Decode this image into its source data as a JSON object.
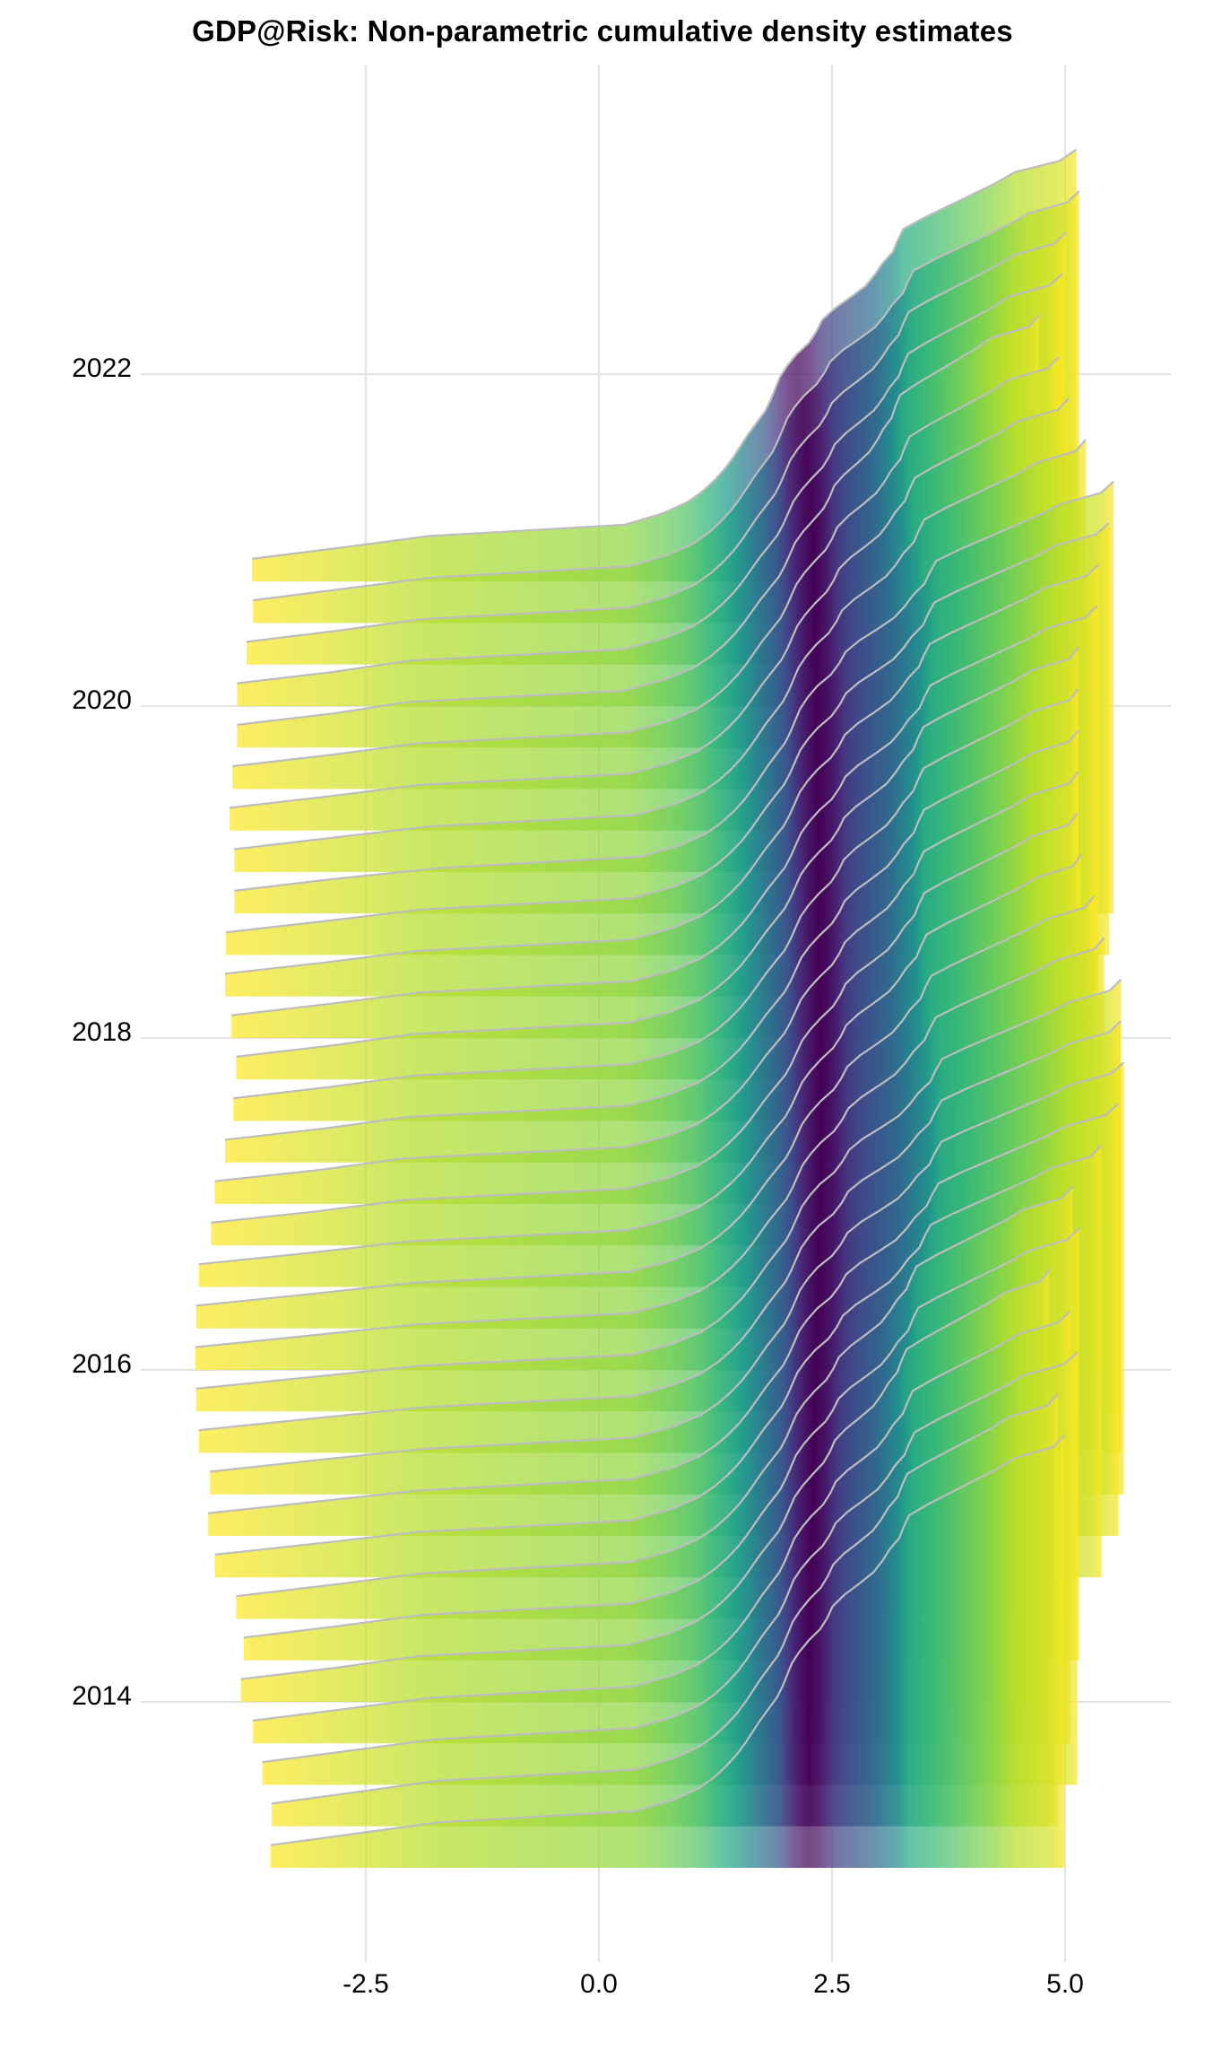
{
  "title": "GDP@Risk: Non-parametric cumulative density estimates",
  "chart_data": {
    "type": "area",
    "subtype": "ridgeline cumulative density (quantile CDF) per quarter",
    "title": "GDP@Risk: Non-parametric cumulative density estimates",
    "xlabel": "",
    "ylabel": "",
    "x_ticks": [
      "-2.5",
      "0.0",
      "2.5",
      "5.0"
    ],
    "x_tick_values": [
      -2.5,
      0.0,
      2.5,
      5.0
    ],
    "y_ticks": [
      "2014",
      "2016",
      "2018",
      "2020",
      "2022"
    ],
    "y_tick_values": [
      2014,
      2016,
      2018,
      2020,
      2022
    ],
    "xlim": [
      -4.6,
      6.0
    ],
    "ylim": [
      2012.9,
      2023.3
    ],
    "grid": true,
    "legend": "none",
    "fill_scale": "viridis by distance of cumulative probability from median (purple = median, yellow = tails)",
    "outline_color": "#bdbdbd",
    "quantile_levels": [
      0.05,
      0.95
    ],
    "series": [
      {
        "period": 2020.75,
        "q05": -3.72,
        "q075": -2.75,
        "q10": -1.82,
        "median": 2.12,
        "q90": 4.46,
        "q95": 5.12
      },
      {
        "period": 2020.5,
        "q05": -3.71,
        "q075": -2.75,
        "q10": -1.8,
        "median": 2.2,
        "q90": 4.6,
        "q95": 5.15
      },
      {
        "period": 2020.25,
        "q05": -3.78,
        "q075": -2.78,
        "q10": -1.88,
        "median": 2.24,
        "q90": 4.45,
        "q95": 5.01
      },
      {
        "period": 2020.0,
        "q05": -3.88,
        "q075": -2.85,
        "q10": -2.02,
        "median": 2.28,
        "q90": 4.4,
        "q95": 4.97
      },
      {
        "period": 2019.75,
        "q05": -3.88,
        "q075": -2.84,
        "q10": -2.05,
        "median": 2.3,
        "q90": 4.2,
        "q95": 4.72
      },
      {
        "period": 2019.5,
        "q05": -3.93,
        "q075": -2.88,
        "q10": -1.96,
        "median": 2.31,
        "q90": 4.4,
        "q95": 4.93
      },
      {
        "period": 2019.25,
        "q05": -3.96,
        "q075": -2.9,
        "q10": -1.93,
        "median": 2.32,
        "q90": 4.5,
        "q95": 5.04
      },
      {
        "period": 2019.0,
        "q05": -3.91,
        "q075": -2.88,
        "q10": -1.82,
        "median": 2.33,
        "q90": 4.7,
        "q95": 5.22
      },
      {
        "period": 2018.75,
        "q05": -3.91,
        "q075": -2.88,
        "q10": -1.7,
        "median": 2.34,
        "q90": 4.95,
        "q95": 5.52
      },
      {
        "period": 2018.5,
        "q05": -4.0,
        "q075": -2.92,
        "q10": -1.9,
        "median": 2.35,
        "q90": 4.9,
        "q95": 5.47
      },
      {
        "period": 2018.25,
        "q05": -4.01,
        "q075": -2.93,
        "q10": -1.95,
        "median": 2.35,
        "q90": 4.8,
        "q95": 5.36
      },
      {
        "period": 2018.0,
        "q05": -3.94,
        "q075": -2.89,
        "q10": -1.92,
        "median": 2.36,
        "q90": 4.8,
        "q95": 5.34
      },
      {
        "period": 2017.75,
        "q05": -3.89,
        "q075": -2.85,
        "q10": -1.98,
        "median": 2.36,
        "q90": 4.65,
        "q95": 5.14
      },
      {
        "period": 2017.5,
        "q05": -3.92,
        "q075": -2.88,
        "q10": -1.97,
        "median": 2.36,
        "q90": 4.65,
        "q95": 5.14
      },
      {
        "period": 2017.25,
        "q05": -4.01,
        "q075": -2.93,
        "q10": -2.05,
        "median": 2.37,
        "q90": 4.65,
        "q95": 5.14
      },
      {
        "period": 2017.0,
        "q05": -4.12,
        "q075": -2.99,
        "q10": -2.1,
        "median": 2.37,
        "q90": 4.65,
        "q95": 5.14
      },
      {
        "period": 2016.75,
        "q05": -4.16,
        "q075": -3.02,
        "q10": -2.08,
        "median": 2.38,
        "q90": 4.65,
        "q95": 5.13
      },
      {
        "period": 2016.5,
        "q05": -4.29,
        "q075": -3.1,
        "q10": -2.05,
        "median": 2.38,
        "q90": 4.7,
        "q95": 5.17
      },
      {
        "period": 2016.25,
        "q05": -4.32,
        "q075": -3.12,
        "q10": -2.0,
        "median": 2.38,
        "q90": 4.8,
        "q95": 5.31
      },
      {
        "period": 2016.0,
        "q05": -4.33,
        "q075": -3.13,
        "q10": -1.96,
        "median": 2.38,
        "q90": 4.9,
        "q95": 5.42
      },
      {
        "period": 2015.75,
        "q05": -4.32,
        "q075": -3.11,
        "q10": -1.92,
        "median": 2.37,
        "q90": 5.05,
        "q95": 5.6
      },
      {
        "period": 2015.5,
        "q05": -4.29,
        "q075": -3.1,
        "q10": -1.9,
        "median": 2.36,
        "q90": 5.05,
        "q95": 5.6
      },
      {
        "period": 2015.25,
        "q05": -4.17,
        "q075": -3.04,
        "q10": -1.88,
        "median": 2.35,
        "q90": 5.05,
        "q95": 5.63
      },
      {
        "period": 2015.0,
        "q05": -4.19,
        "q075": -3.05,
        "q10": -1.92,
        "median": 2.34,
        "q90": 5.0,
        "q95": 5.57
      },
      {
        "period": 2014.75,
        "q05": -4.12,
        "q075": -3.0,
        "q10": -1.93,
        "median": 2.32,
        "q90": 4.85,
        "q95": 5.39
      },
      {
        "period": 2014.5,
        "q05": -3.89,
        "q075": -2.86,
        "q10": -1.9,
        "median": 2.31,
        "q90": 4.55,
        "q95": 5.08
      },
      {
        "period": 2014.25,
        "q05": -3.81,
        "q075": -2.81,
        "q10": -1.88,
        "median": 2.3,
        "q90": 4.6,
        "q95": 5.15
      },
      {
        "period": 2014.0,
        "q05": -3.84,
        "q075": -2.82,
        "q10": -1.96,
        "median": 2.29,
        "q90": 4.35,
        "q95": 4.83
      },
      {
        "period": 2013.75,
        "q05": -3.71,
        "q075": -2.74,
        "q10": -1.8,
        "median": 2.28,
        "q90": 4.5,
        "q95": 5.05
      },
      {
        "period": 2013.5,
        "q05": -3.61,
        "q075": -2.68,
        "q10": -1.76,
        "median": 2.27,
        "q90": 4.55,
        "q95": 5.13
      },
      {
        "period": 2013.25,
        "q05": -3.51,
        "q075": -2.61,
        "q10": -1.74,
        "median": 2.26,
        "q90": 4.4,
        "q95": 4.92
      },
      {
        "period": 2013.0,
        "q05": -3.52,
        "q075": -2.62,
        "q10": -1.72,
        "median": 2.25,
        "q90": 4.45,
        "q95": 4.99
      }
    ]
  },
  "axes": {
    "x_ticks": [
      {
        "label": "-2.5",
        "value": -2.5
      },
      {
        "label": "0.0",
        "value": 0.0
      },
      {
        "label": "2.5",
        "value": 2.5
      },
      {
        "label": "5.0",
        "value": 5.0
      }
    ],
    "y_ticks": [
      {
        "label": "2014",
        "value": 2014
      },
      {
        "label": "2016",
        "value": 2016
      },
      {
        "label": "2018",
        "value": 2018
      },
      {
        "label": "2020",
        "value": 2020
      },
      {
        "label": "2022",
        "value": 2022
      }
    ]
  },
  "colors": {
    "gridline": "#e3e3e3",
    "outline": "#bdbdbd",
    "viridis": [
      "#440154",
      "#482878",
      "#3e4a89",
      "#31688e",
      "#26828e",
      "#1f9e89",
      "#35b779",
      "#6ece58",
      "#b5de2b",
      "#fde725"
    ]
  }
}
